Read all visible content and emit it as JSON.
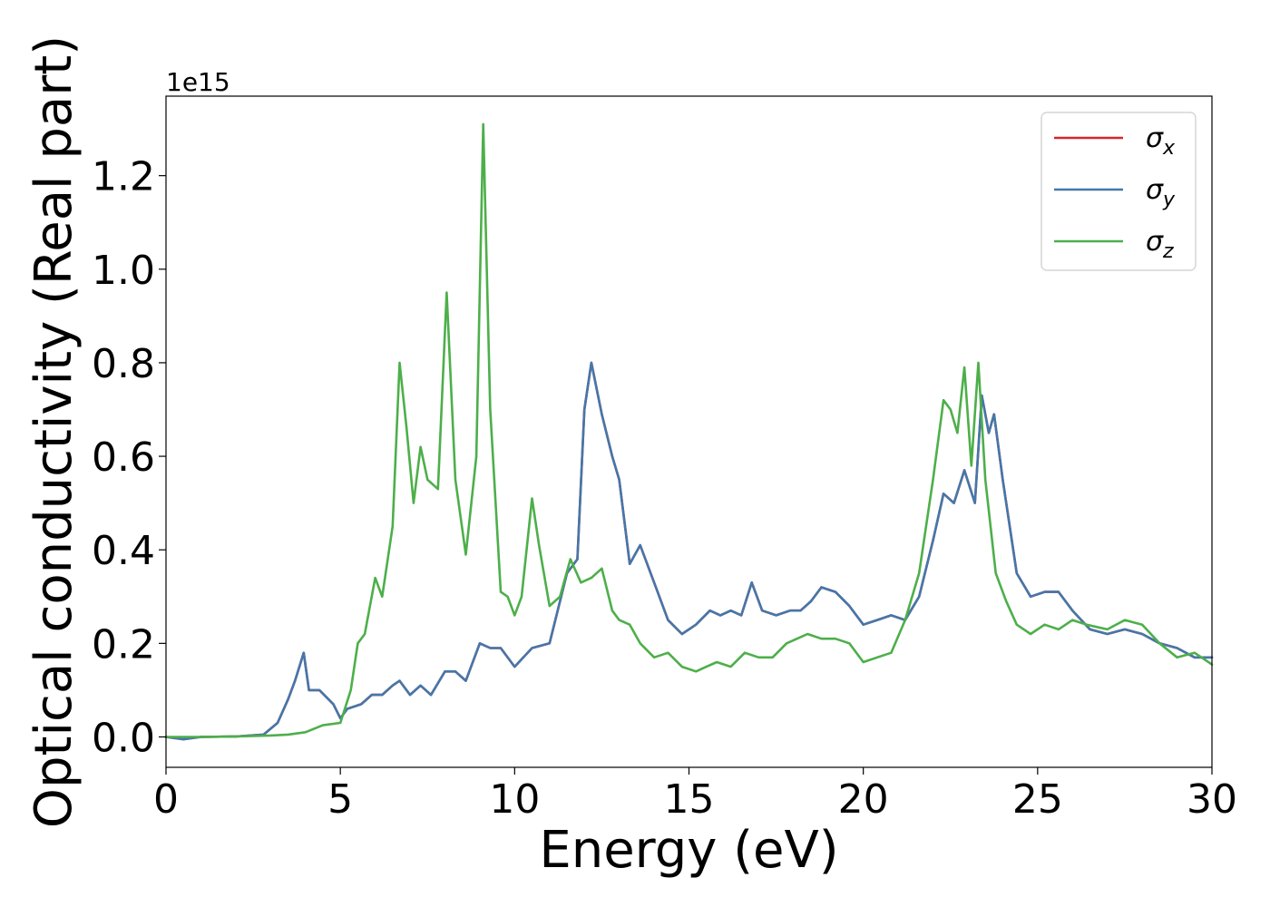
{
  "chart_data": {
    "type": "line",
    "title": "",
    "xlabel": "Energy (eV)",
    "ylabel": "Optical conductivity (Real part)",
    "y_offset_text": "1e15",
    "y_scale": 1000000000000000.0,
    "xlim": [
      0,
      30
    ],
    "ylim": [
      -0.065,
      1.37
    ],
    "xticks": [
      0,
      5,
      10,
      15,
      20,
      25,
      30
    ],
    "xtick_labels": [
      "0",
      "5",
      "10",
      "15",
      "20",
      "25",
      "30"
    ],
    "yticks": [
      0.0,
      0.2,
      0.4,
      0.6,
      0.8,
      1.0,
      1.2
    ],
    "ytick_labels": [
      "0.0",
      "0.2",
      "0.4",
      "0.6",
      "0.8",
      "1.0",
      "1.2"
    ],
    "grid": false,
    "legend_position": "top-right",
    "series": [
      {
        "name": "σx",
        "color": "#d62728",
        "x": [
          0,
          0.5,
          1,
          2,
          2.8,
          3.2,
          3.5,
          3.7,
          3.95,
          4.1,
          4.4,
          4.8,
          5.0,
          5.2,
          5.6,
          5.9,
          6.2,
          6.5,
          6.7,
          7.0,
          7.3,
          7.6,
          8.0,
          8.3,
          8.6,
          9.0,
          9.3,
          9.6,
          10.0,
          10.5,
          11.0,
          11.5,
          11.8,
          12.0,
          12.2,
          12.5,
          12.8,
          13.0,
          13.3,
          13.6,
          14.0,
          14.4,
          14.8,
          15.2,
          15.6,
          15.9,
          16.2,
          16.5,
          16.8,
          17.1,
          17.5,
          17.9,
          18.2,
          18.5,
          18.8,
          19.2,
          19.6,
          20.0,
          20.4,
          20.8,
          21.2,
          21.6,
          22.0,
          22.3,
          22.6,
          22.9,
          23.2,
          23.4,
          23.6,
          23.75,
          24.0,
          24.4,
          24.8,
          25.2,
          25.6,
          26.0,
          26.5,
          27.0,
          27.5,
          28.0,
          28.5,
          29.0,
          29.5,
          30.0
        ],
        "y": [
          0,
          -0.005,
          0,
          0.001,
          0.005,
          0.03,
          0.08,
          0.12,
          0.18,
          0.1,
          0.1,
          0.07,
          0.04,
          0.06,
          0.07,
          0.09,
          0.09,
          0.11,
          0.12,
          0.09,
          0.11,
          0.09,
          0.14,
          0.14,
          0.12,
          0.2,
          0.19,
          0.19,
          0.15,
          0.19,
          0.2,
          0.35,
          0.38,
          0.7,
          0.8,
          0.69,
          0.6,
          0.55,
          0.37,
          0.41,
          0.33,
          0.25,
          0.22,
          0.24,
          0.27,
          0.26,
          0.27,
          0.26,
          0.33,
          0.27,
          0.26,
          0.27,
          0.27,
          0.29,
          0.32,
          0.31,
          0.28,
          0.24,
          0.25,
          0.26,
          0.25,
          0.3,
          0.42,
          0.52,
          0.5,
          0.57,
          0.5,
          0.73,
          0.65,
          0.69,
          0.55,
          0.35,
          0.3,
          0.31,
          0.31,
          0.27,
          0.23,
          0.22,
          0.23,
          0.22,
          0.2,
          0.19,
          0.17,
          0.17
        ]
      },
      {
        "name": "σy",
        "color": "#4477aa",
        "x": [
          0,
          0.5,
          1,
          2,
          2.8,
          3.2,
          3.5,
          3.7,
          3.95,
          4.1,
          4.4,
          4.8,
          5.0,
          5.2,
          5.6,
          5.9,
          6.2,
          6.5,
          6.7,
          7.0,
          7.3,
          7.6,
          8.0,
          8.3,
          8.6,
          9.0,
          9.3,
          9.6,
          10.0,
          10.5,
          11.0,
          11.5,
          11.8,
          12.0,
          12.2,
          12.5,
          12.8,
          13.0,
          13.3,
          13.6,
          14.0,
          14.4,
          14.8,
          15.2,
          15.6,
          15.9,
          16.2,
          16.5,
          16.8,
          17.1,
          17.5,
          17.9,
          18.2,
          18.5,
          18.8,
          19.2,
          19.6,
          20.0,
          20.4,
          20.8,
          21.2,
          21.6,
          22.0,
          22.3,
          22.6,
          22.9,
          23.2,
          23.4,
          23.6,
          23.75,
          24.0,
          24.4,
          24.8,
          25.2,
          25.6,
          26.0,
          26.5,
          27.0,
          27.5,
          28.0,
          28.5,
          29.0,
          29.5,
          30.0
        ],
        "y": [
          0,
          -0.005,
          0,
          0.001,
          0.005,
          0.03,
          0.08,
          0.12,
          0.18,
          0.1,
          0.1,
          0.07,
          0.04,
          0.06,
          0.07,
          0.09,
          0.09,
          0.11,
          0.12,
          0.09,
          0.11,
          0.09,
          0.14,
          0.14,
          0.12,
          0.2,
          0.19,
          0.19,
          0.15,
          0.19,
          0.2,
          0.35,
          0.38,
          0.7,
          0.8,
          0.69,
          0.6,
          0.55,
          0.37,
          0.41,
          0.33,
          0.25,
          0.22,
          0.24,
          0.27,
          0.26,
          0.27,
          0.26,
          0.33,
          0.27,
          0.26,
          0.27,
          0.27,
          0.29,
          0.32,
          0.31,
          0.28,
          0.24,
          0.25,
          0.26,
          0.25,
          0.3,
          0.42,
          0.52,
          0.5,
          0.57,
          0.5,
          0.73,
          0.65,
          0.69,
          0.55,
          0.35,
          0.3,
          0.31,
          0.31,
          0.27,
          0.23,
          0.22,
          0.23,
          0.22,
          0.2,
          0.19,
          0.17,
          0.17
        ]
      },
      {
        "name": "σz",
        "color": "#4daf4a",
        "x": [
          0,
          1,
          2,
          3,
          3.5,
          4.0,
          4.5,
          5.0,
          5.3,
          5.5,
          5.7,
          6.0,
          6.2,
          6.5,
          6.7,
          6.9,
          7.1,
          7.3,
          7.5,
          7.8,
          8.05,
          8.3,
          8.6,
          8.9,
          9.1,
          9.3,
          9.6,
          9.8,
          10.0,
          10.2,
          10.5,
          10.7,
          11.0,
          11.3,
          11.6,
          11.9,
          12.2,
          12.5,
          12.8,
          13.0,
          13.3,
          13.6,
          14.0,
          14.4,
          14.8,
          15.2,
          15.5,
          15.8,
          16.2,
          16.6,
          17.0,
          17.4,
          17.8,
          18.1,
          18.4,
          18.8,
          19.2,
          19.6,
          20.0,
          20.4,
          20.8,
          21.2,
          21.6,
          22.0,
          22.3,
          22.5,
          22.7,
          22.9,
          23.1,
          23.3,
          23.5,
          23.8,
          24.1,
          24.4,
          24.8,
          25.2,
          25.6,
          26.0,
          26.4,
          27.0,
          27.5,
          28.0,
          28.5,
          29.0,
          29.5,
          30.0
        ],
        "y": [
          0,
          0,
          0.001,
          0.003,
          0.005,
          0.01,
          0.025,
          0.03,
          0.1,
          0.2,
          0.22,
          0.34,
          0.3,
          0.45,
          0.8,
          0.66,
          0.5,
          0.62,
          0.55,
          0.53,
          0.95,
          0.55,
          0.39,
          0.6,
          1.31,
          0.7,
          0.31,
          0.3,
          0.26,
          0.3,
          0.51,
          0.41,
          0.28,
          0.3,
          0.38,
          0.33,
          0.34,
          0.36,
          0.27,
          0.25,
          0.24,
          0.2,
          0.17,
          0.18,
          0.15,
          0.14,
          0.15,
          0.16,
          0.15,
          0.18,
          0.17,
          0.17,
          0.2,
          0.21,
          0.22,
          0.21,
          0.21,
          0.2,
          0.16,
          0.17,
          0.18,
          0.25,
          0.35,
          0.55,
          0.72,
          0.7,
          0.65,
          0.79,
          0.58,
          0.8,
          0.55,
          0.35,
          0.29,
          0.24,
          0.22,
          0.24,
          0.23,
          0.25,
          0.24,
          0.23,
          0.25,
          0.24,
          0.2,
          0.17,
          0.18,
          0.155
        ]
      }
    ]
  }
}
